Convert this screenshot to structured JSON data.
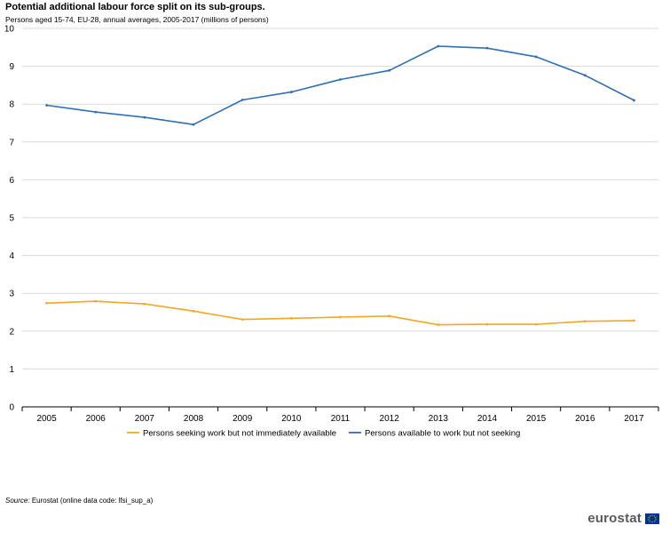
{
  "chart_data": {
    "type": "line",
    "title": "Potential additional labour force split on its sub-groups.",
    "subtitle": "Persons aged 15-74, EU-28, annual averages, 2005-2017 (millions of persons)",
    "xlabel": "",
    "ylabel": "",
    "ylim": [
      0,
      10
    ],
    "yticks": [
      0,
      1,
      2,
      3,
      4,
      5,
      6,
      7,
      8,
      9,
      10
    ],
    "categories": [
      "2005",
      "2006",
      "2007",
      "2008",
      "2009",
      "2010",
      "2011",
      "2012",
      "2013",
      "2014",
      "2015",
      "2016",
      "2017"
    ],
    "grid": true,
    "legend_position": "bottom",
    "series": [
      {
        "name": "Persons seeking work but not immediately available",
        "color": "#f5a623",
        "values": [
          2.74,
          2.79,
          2.72,
          2.53,
          2.31,
          2.34,
          2.37,
          2.4,
          2.17,
          2.18,
          2.18,
          2.26,
          2.28
        ]
      },
      {
        "name": "Persons available to work but not seeking",
        "color": "#2e6fb6",
        "values": [
          7.97,
          7.79,
          7.65,
          7.46,
          8.11,
          8.32,
          8.65,
          8.89,
          9.53,
          9.48,
          9.25,
          8.76,
          8.1
        ]
      }
    ]
  },
  "source": {
    "label": "Source:",
    "text": "Eurostat (online data code: lfsi_sup_a)"
  },
  "logo": {
    "text": "eurostat"
  }
}
